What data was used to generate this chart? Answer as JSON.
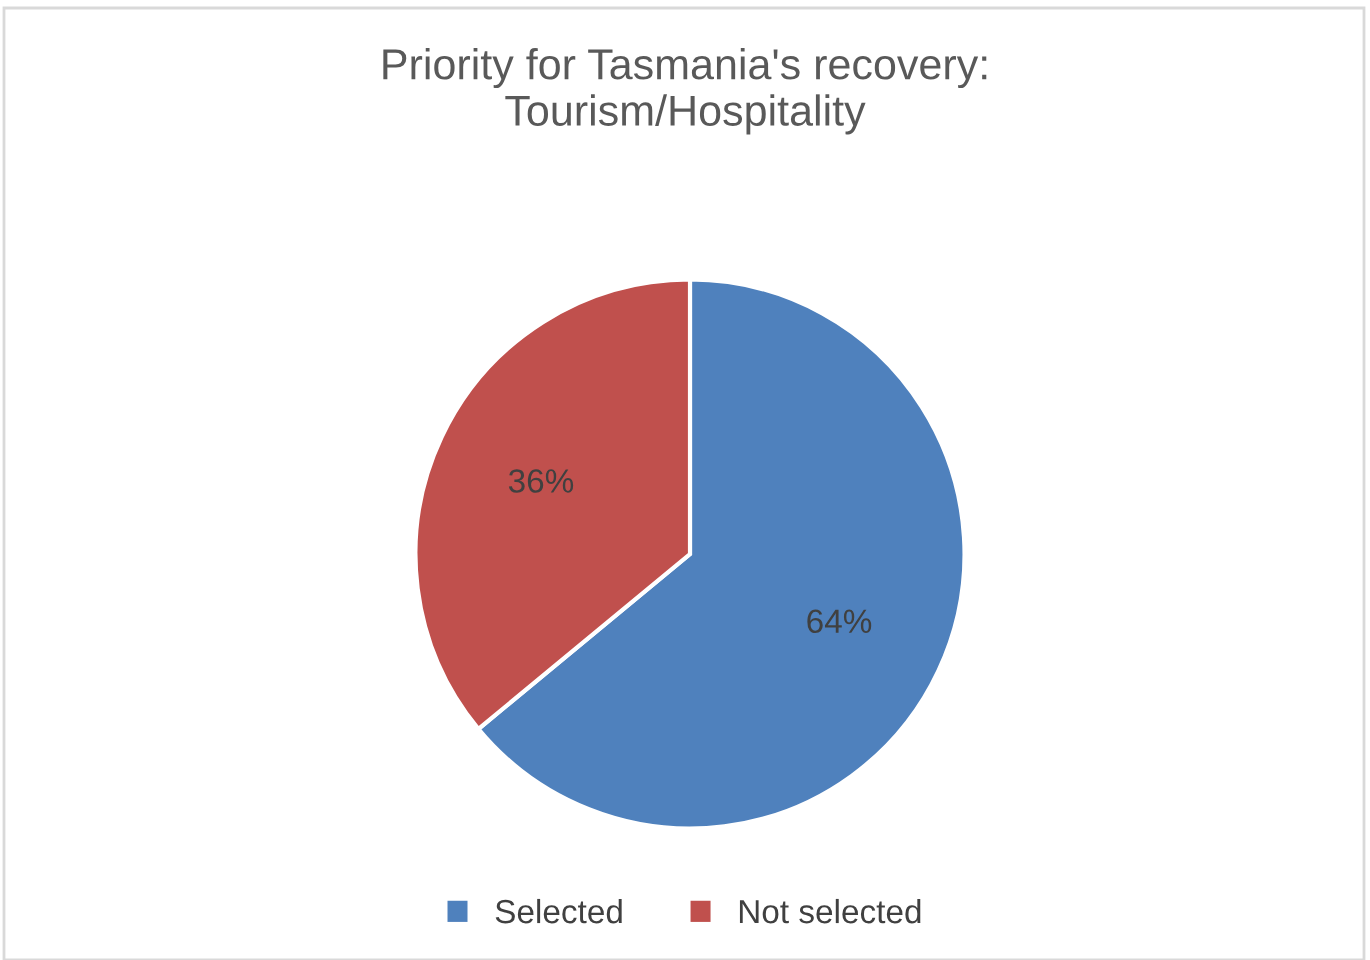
{
  "chart_data": {
    "type": "pie",
    "title": "Priority for Tasmania's recovery:\nTourism/Hospitality",
    "categories": [
      "Selected",
      "Not selected"
    ],
    "values": [
      64,
      36
    ],
    "colors": [
      "#4f81bd",
      "#c0504d"
    ],
    "value_labels": [
      "64%",
      "36%"
    ],
    "legend": "bottom"
  }
}
